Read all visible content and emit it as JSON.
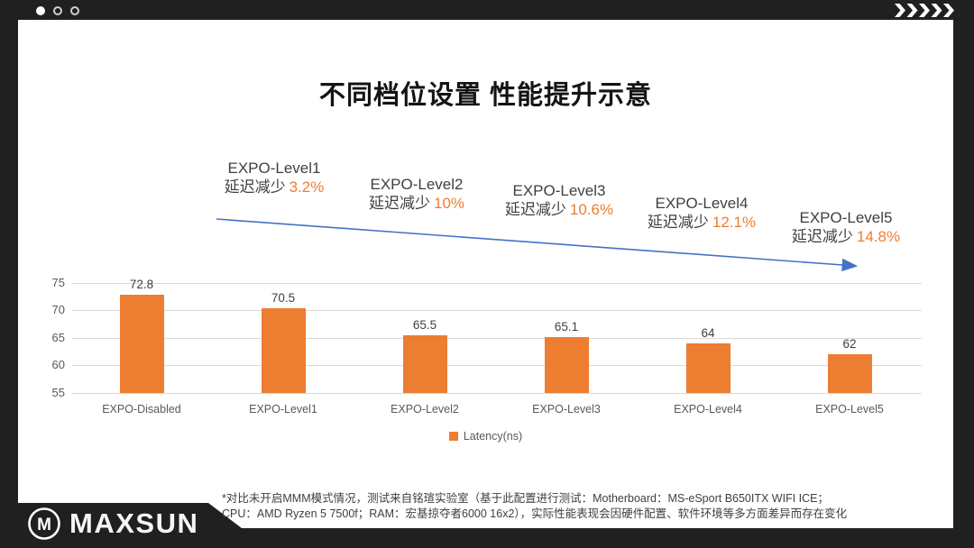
{
  "title": "不同档位设置 性能提升示意",
  "annotations": [
    {
      "level": "EXPO-Level1",
      "prefix": "延迟减少",
      "pct": "3.2%"
    },
    {
      "level": "EXPO-Level2",
      "prefix": "延迟减少",
      "pct": "10%"
    },
    {
      "level": "EXPO-Level3",
      "prefix": "延迟减少",
      "pct": "10.6%"
    },
    {
      "level": "EXPO-Level4",
      "prefix": "延迟减少",
      "pct": "12.1%"
    },
    {
      "level": "EXPO-Level5",
      "prefix": "延迟减少",
      "pct": "14.8%"
    }
  ],
  "chart_data": {
    "type": "bar",
    "categories": [
      "EXPO-Disabled",
      "EXPO-Level1",
      "EXPO-Level2",
      "EXPO-Level3",
      "EXPO-Level4",
      "EXPO-Level5"
    ],
    "values": [
      72.8,
      70.5,
      65.5,
      65.1,
      64,
      62
    ],
    "series_name": "Latency(ns)",
    "title": "不同档位设置 性能提升示意",
    "xlabel": "",
    "ylabel": "",
    "ylim": [
      55,
      75
    ],
    "yticks": [
      55,
      60,
      65,
      70,
      75
    ],
    "grid": true,
    "legend_position": "bottom",
    "bar_color": "#ed7d31"
  },
  "legend": {
    "label": "Latency(ns)"
  },
  "footer": {
    "line1": "*对比未开启MMM模式情况，测试来自铭瑄实验室（基于此配置进行测试：Motherboard：MS-eSport B650ITX WIFI ICE；",
    "line2": "CPU：AMD Ryzen 5 7500f；RAM：宏基掠夺者6000 16x2），实际性能表现会因硬件配置、软件环境等多方面差异而存在变化"
  },
  "brand": {
    "name": "MAXSUN",
    "logo_letter": "M"
  },
  "colors": {
    "accent_orange": "#ed7d31",
    "arrow_blue": "#4472c4",
    "bg_dark": "#202020",
    "grid": "#d9d9d9",
    "text_dark": "#3f3f3f",
    "text_gray": "#595959"
  }
}
